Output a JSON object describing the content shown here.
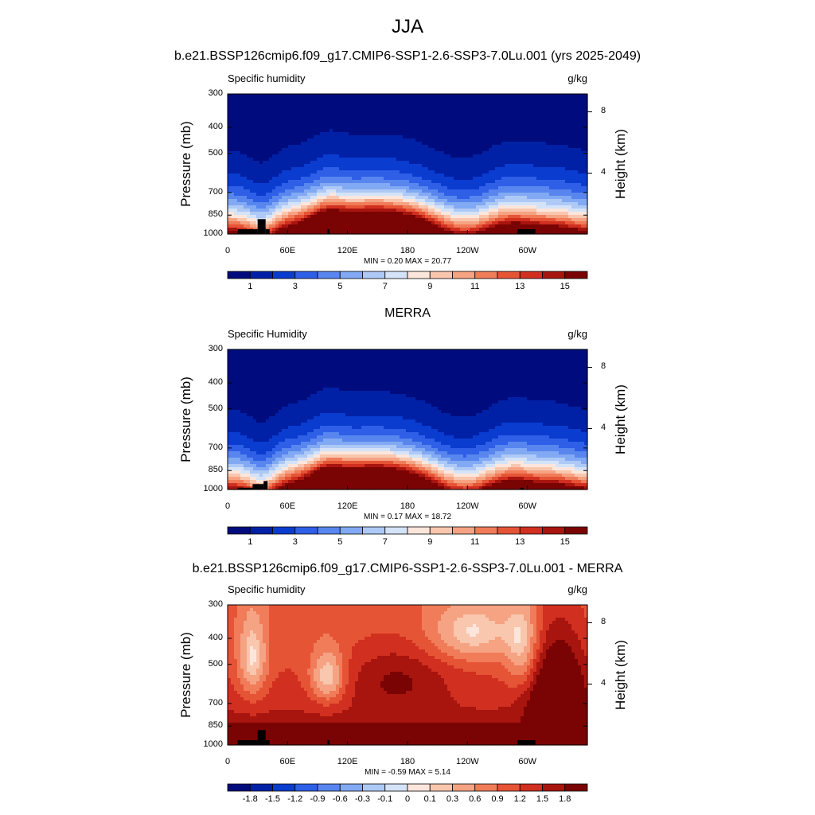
{
  "title": "JJA",
  "colors": {
    "abs_levels": [
      "#000c7d",
      "#0021a6",
      "#0a3ccf",
      "#2e5fe6",
      "#5886ee",
      "#82a9f3",
      "#aec9f6",
      "#d4e3f8",
      "#fce6dc",
      "#f9c6ae",
      "#f5a383",
      "#f07c59",
      "#e65436",
      "#d12f1f",
      "#a8150f",
      "#7a0403"
    ],
    "diff_levels": [
      "#000c7d",
      "#0021a6",
      "#0a3ccf",
      "#2e5fe6",
      "#5886ee",
      "#82a9f3",
      "#aec9f6",
      "#d4e3f8",
      "#fce6dc",
      "#f9c6ae",
      "#f5a383",
      "#f07c59",
      "#e65436",
      "#d12f1f",
      "#a8150f",
      "#7a0403"
    ],
    "terrain": "#000000"
  },
  "panels": [
    {
      "subtitle": "b.e21.BSSP126cmip6.f09_g17.CMIP6-SSP1-2.6-SSP3-7.0Lu.001 (yrs 2025-2049)",
      "left_label": "Specific humidity",
      "units": "g/kg",
      "stats": "MIN =   0.20  MAX =  20.77",
      "ylabel": "Pressure (mb)",
      "right_label": "Height (km)"
    },
    {
      "subtitle": "MERRA",
      "left_label": "Specific Humidity",
      "units": "g/kg",
      "stats": "MIN =   0.17  MAX =  18.72",
      "ylabel": "Pressure (mb)",
      "right_label": "Height (km)"
    },
    {
      "subtitle": "b.e21.BSSP126cmip6.f09_g17.CMIP6-SSP1-2.6-SSP3-7.0Lu.001 - MERRA",
      "left_label": "Specific humidity",
      "units": "g/kg",
      "stats": "MIN =  -0.59  MAX =   5.14",
      "ylabel": "Pressure (mb)",
      "right_label": "Height (km)"
    }
  ],
  "axes": {
    "y_ticks": [
      "300",
      "400",
      "500",
      "700",
      "850",
      "1000"
    ],
    "y_tick_values": [
      300,
      400,
      500,
      700,
      850,
      1000
    ],
    "right_ticks": [
      "8",
      "4"
    ],
    "right_tick_values": [
      8,
      4
    ],
    "x_ticks": [
      "0",
      "60E",
      "120E",
      "180",
      "120W",
      "60W"
    ],
    "x_tick_values": [
      0,
      60,
      120,
      180,
      240,
      300
    ],
    "x_range": [
      0,
      360
    ],
    "y_range": [
      300,
      1000
    ],
    "y_scale": "log"
  },
  "colorbars": {
    "abs_labels": [
      "1",
      "3",
      "5",
      "7",
      "9",
      "11",
      "13",
      "15"
    ],
    "diff_labels": [
      "-1.8",
      "-1.5",
      "-1.2",
      "-0.9",
      "-0.6",
      "-0.3",
      "-0.1",
      "0",
      "0.1",
      "0.3",
      "0.6",
      "0.9",
      "1.2",
      "1.5",
      "1.8"
    ]
  },
  "chart_data": [
    {
      "type": "heatmap",
      "title": "b.e21.BSSP126cmip6.f09_g17.CMIP6-SSP1-2.6-SSP3-7.0Lu.001 (yrs 2025-2049)",
      "field": "Specific humidity",
      "units": "g/kg",
      "ylabel": "Pressure (mb)",
      "y2label": "Height (km)",
      "contour_levels": [
        1,
        2,
        3,
        4,
        5,
        6,
        7,
        8,
        9,
        10,
        11,
        12,
        13,
        14,
        15
      ],
      "min": 0.2,
      "max": 20.77
    },
    {
      "type": "heatmap",
      "title": "MERRA",
      "field": "Specific Humidity",
      "units": "g/kg",
      "ylabel": "Pressure (mb)",
      "y2label": "Height (km)",
      "contour_levels": [
        1,
        2,
        3,
        4,
        5,
        6,
        7,
        8,
        9,
        10,
        11,
        12,
        13,
        14,
        15
      ],
      "min": 0.17,
      "max": 18.72
    },
    {
      "type": "heatmap",
      "title": "b.e21.BSSP126cmip6.f09_g17.CMIP6-SSP1-2.6-SSP3-7.0Lu.001 - MERRA",
      "field": "Specific humidity",
      "units": "g/kg",
      "ylabel": "Pressure (mb)",
      "y2label": "Height (km)",
      "contour_levels": [
        -1.8,
        -1.5,
        -1.2,
        -0.9,
        -0.6,
        -0.3,
        -0.1,
        0,
        0.1,
        0.3,
        0.6,
        0.9,
        1.2,
        1.5,
        1.8
      ],
      "min": -0.59,
      "max": 5.14
    }
  ]
}
